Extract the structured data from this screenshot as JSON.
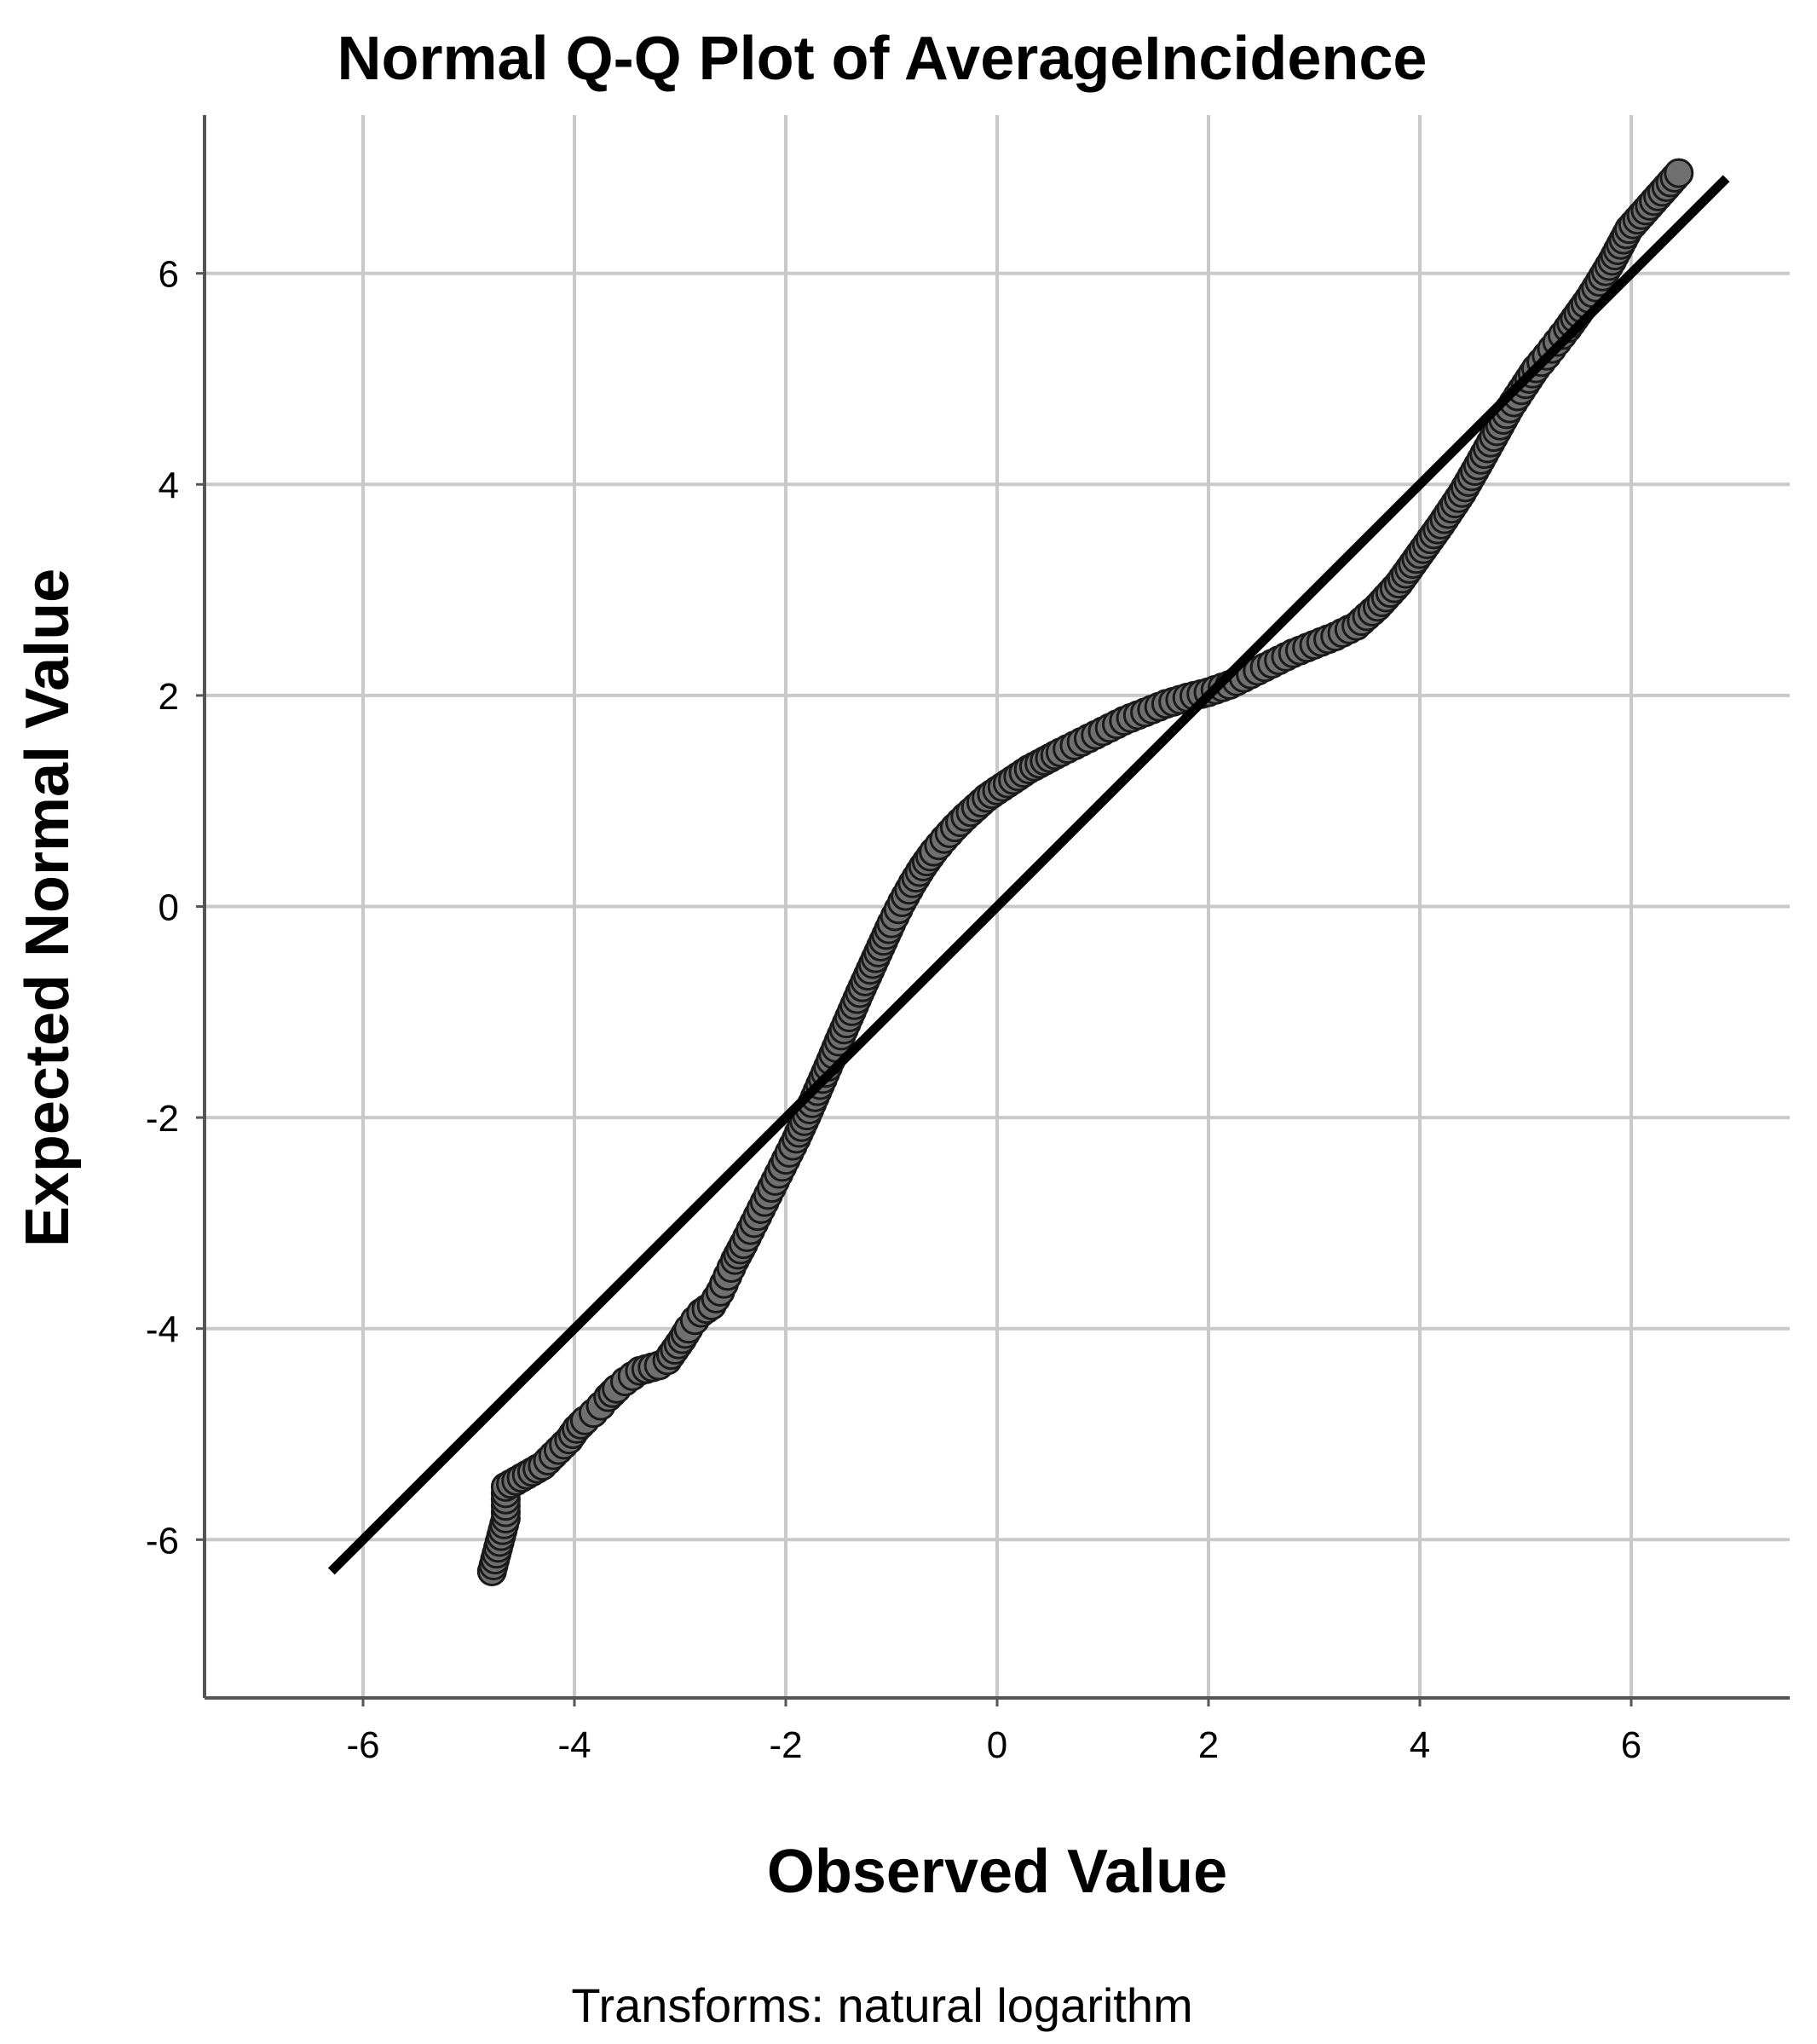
{
  "chart_data": {
    "type": "scatter",
    "title": "Normal Q-Q Plot of AverageIncidence",
    "xlabel": "Observed Value",
    "ylabel": "Expected Normal Value",
    "footnote": "Transforms: natural logarithm",
    "xlim": [
      -7.5,
      7.5
    ],
    "ylim": [
      -7.5,
      7.5
    ],
    "xticks": [
      -6,
      -4,
      -2,
      0,
      2,
      4,
      6
    ],
    "yticks": [
      -6,
      -4,
      -2,
      0,
      2,
      4,
      6
    ],
    "xtick_labels": [
      "-6",
      "-4",
      "-2",
      "0",
      "2",
      "4",
      "6"
    ],
    "ytick_labels": [
      "-6",
      "-4",
      "-2",
      "0",
      "2",
      "4",
      "6"
    ],
    "grid": true,
    "legend": "none",
    "reference_line": {
      "x": [
        -6.3,
        6.9
      ],
      "y": [
        -6.3,
        6.9
      ],
      "color": "#000000"
    },
    "series": [
      {
        "point_color": "#707070",
        "x": [
          -4.78,
          -4.65,
          -4.65,
          -4.3,
          -4.15,
          -4.05,
          -3.98,
          -3.9,
          -3.82,
          -3.75,
          -3.68,
          -3.6,
          -3.52,
          -3.45,
          -3.38,
          -3.2,
          -3.12,
          -3.05,
          -2.98,
          -2.92,
          -2.86,
          -2.8,
          -2.7,
          -2.62,
          -2.55,
          -2.48,
          -2.4,
          -2.3,
          -2.2,
          -2.1,
          -2.0,
          -1.9,
          -1.8,
          -1.7,
          -1.6,
          -1.5,
          -1.4,
          -1.3,
          -1.2,
          -1.1,
          -1.0,
          -0.9,
          -0.8,
          -0.7,
          -0.6,
          -0.5,
          -0.4,
          -0.3,
          -0.2,
          -0.1,
          0.0,
          0.15,
          0.3,
          0.45,
          0.6,
          0.8,
          1.0,
          1.2,
          1.4,
          1.6,
          1.8,
          2.0,
          2.2,
          2.4,
          2.6,
          2.8,
          3.0,
          3.2,
          3.4,
          3.6,
          3.8,
          4.0,
          4.2,
          4.4,
          4.55,
          4.7,
          4.85,
          5.0,
          5.1,
          5.2,
          5.3,
          5.4,
          5.5,
          5.6,
          5.7,
          5.82,
          5.98,
          6.45
        ],
        "y": [
          -6.3,
          -5.8,
          -5.5,
          -5.3,
          -5.15,
          -5.05,
          -4.95,
          -4.87,
          -4.8,
          -4.73,
          -4.65,
          -4.57,
          -4.5,
          -4.45,
          -4.4,
          -4.35,
          -4.3,
          -4.2,
          -4.1,
          -4.0,
          -3.92,
          -3.85,
          -3.78,
          -3.65,
          -3.5,
          -3.35,
          -3.2,
          -3.0,
          -2.8,
          -2.6,
          -2.4,
          -2.2,
          -1.98,
          -1.75,
          -1.52,
          -1.28,
          -1.05,
          -0.82,
          -0.6,
          -0.38,
          -0.16,
          0.04,
          0.22,
          0.38,
          0.52,
          0.64,
          0.75,
          0.85,
          0.94,
          1.03,
          1.1,
          1.2,
          1.3,
          1.38,
          1.46,
          1.56,
          1.66,
          1.76,
          1.84,
          1.92,
          1.98,
          2.03,
          2.1,
          2.2,
          2.3,
          2.4,
          2.48,
          2.56,
          2.66,
          2.84,
          3.06,
          3.34,
          3.62,
          3.92,
          4.18,
          4.45,
          4.72,
          4.95,
          5.1,
          5.22,
          5.35,
          5.48,
          5.62,
          5.76,
          5.92,
          6.12,
          6.42,
          6.95
        ]
      }
    ]
  }
}
